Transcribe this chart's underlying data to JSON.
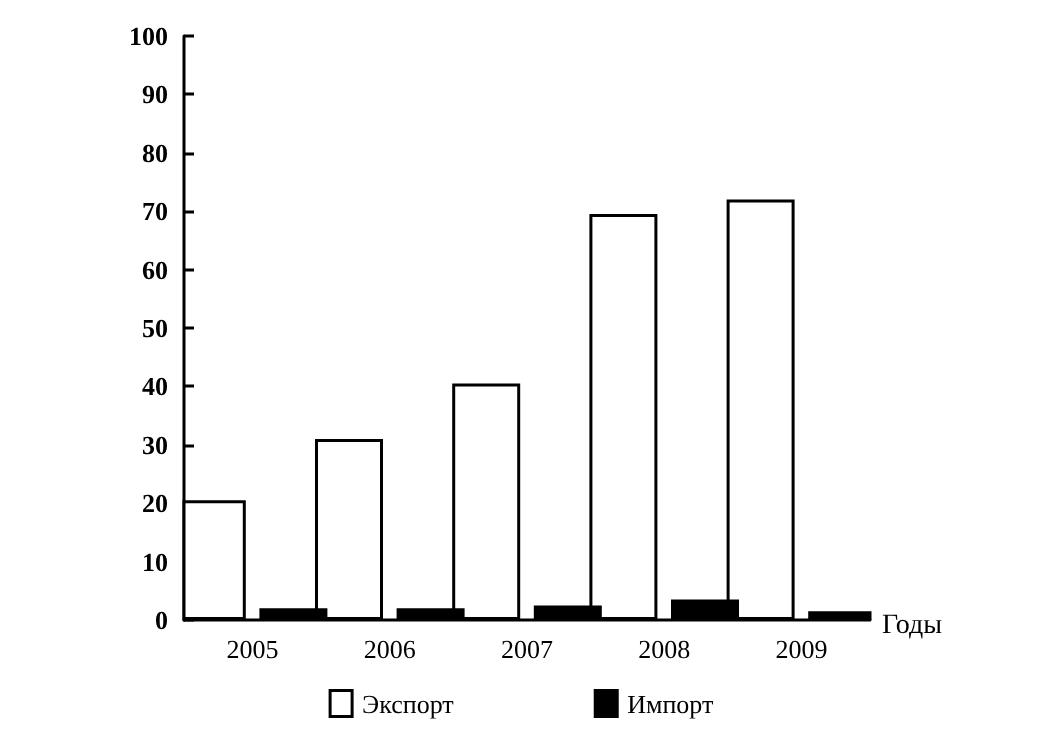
{
  "chart_data": {
    "type": "bar",
    "xlabel": "Годы",
    "categories": [
      "2005",
      "2006",
      "2007",
      "2008",
      "2009"
    ],
    "series": [
      {
        "name": "Экспорт",
        "color": "#ffffff",
        "values": [
          20.5,
          31,
          40.5,
          69.5,
          72
        ]
      },
      {
        "name": "Импорт",
        "color": "#000000",
        "values": [
          2,
          2,
          2.5,
          3.5,
          1.5
        ]
      }
    ],
    "ylim": [
      0,
      100
    ],
    "yticks": [
      0,
      10,
      20,
      30,
      40,
      50,
      60,
      70,
      80,
      90,
      100
    ],
    "grid": false,
    "legend": "bottom"
  }
}
